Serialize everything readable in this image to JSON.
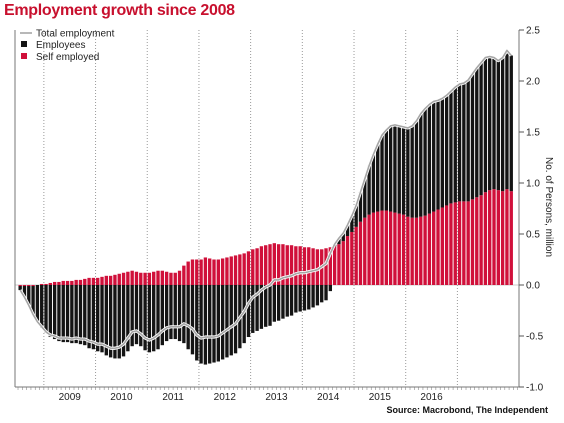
{
  "chart_data": {
    "type": "bar",
    "title": "Employment growth since 2008",
    "ylabel": "No. of Persons, million",
    "xlabel": "",
    "source": "Source: Macrobond, The Independent",
    "ylim": [
      -1.0,
      2.5
    ],
    "yticks": [
      "2.5",
      "2.0",
      "1.5",
      "1.0",
      "0.5",
      "0.0",
      "-0.5",
      "-1.0"
    ],
    "year_labels": [
      "2009",
      "2010",
      "2011",
      "2012",
      "2013",
      "2014",
      "2015",
      "2016"
    ],
    "x_start": 2008.5,
    "x_step_months": 1,
    "grid": "vertical dotted at year boundaries",
    "legend_position": "top-left",
    "colors": {
      "Total employment": "#a6a6a6",
      "Employees": "#141414",
      "Self employed": "#d0103a"
    },
    "series": [
      {
        "name": "Employees",
        "kind": "stacked-bar",
        "values": [
          -0.04,
          -0.11,
          -0.19,
          -0.28,
          -0.36,
          -0.42,
          -0.47,
          -0.51,
          -0.53,
          -0.55,
          -0.56,
          -0.56,
          -0.57,
          -0.57,
          -0.58,
          -0.59,
          -0.62,
          -0.63,
          -0.65,
          -0.66,
          -0.69,
          -0.71,
          -0.72,
          -0.72,
          -0.7,
          -0.65,
          -0.6,
          -0.58,
          -0.6,
          -0.64,
          -0.66,
          -0.65,
          -0.63,
          -0.59,
          -0.55,
          -0.53,
          -0.53,
          -0.55,
          -0.57,
          -0.63,
          -0.68,
          -0.74,
          -0.77,
          -0.78,
          -0.77,
          -0.76,
          -0.75,
          -0.73,
          -0.71,
          -0.69,
          -0.67,
          -0.62,
          -0.57,
          -0.51,
          -0.47,
          -0.45,
          -0.43,
          -0.41,
          -0.4,
          -0.36,
          -0.35,
          -0.33,
          -0.31,
          -0.3,
          -0.27,
          -0.26,
          -0.25,
          -0.24,
          -0.22,
          -0.2,
          -0.17,
          -0.15,
          -0.06,
          0.02,
          0.06,
          0.08,
          0.11,
          0.16,
          0.21,
          0.29,
          0.38,
          0.48,
          0.57,
          0.66,
          0.74,
          0.79,
          0.84,
          0.86,
          0.86,
          0.86,
          0.87,
          0.9,
          0.95,
          1.01,
          1.05,
          1.07,
          1.08,
          1.07,
          1.07,
          1.08,
          1.1,
          1.13,
          1.15,
          1.16,
          1.19,
          1.23,
          1.27,
          1.3,
          1.32,
          1.31,
          1.29,
          1.27,
          1.31,
          1.36,
          1.33
        ],
        "unit": "million"
      },
      {
        "name": "Self employed",
        "kind": "stacked-bar",
        "values": [
          -0.01,
          -0.01,
          -0.01,
          -0.01,
          0.0,
          0.01,
          0.01,
          0.02,
          0.03,
          0.03,
          0.04,
          0.04,
          0.04,
          0.05,
          0.05,
          0.06,
          0.07,
          0.07,
          0.07,
          0.08,
          0.09,
          0.09,
          0.1,
          0.11,
          0.12,
          0.13,
          0.14,
          0.13,
          0.12,
          0.12,
          0.12,
          0.13,
          0.14,
          0.14,
          0.13,
          0.12,
          0.12,
          0.14,
          0.19,
          0.23,
          0.25,
          0.25,
          0.25,
          0.27,
          0.26,
          0.25,
          0.25,
          0.26,
          0.27,
          0.28,
          0.29,
          0.3,
          0.31,
          0.33,
          0.35,
          0.36,
          0.38,
          0.39,
          0.4,
          0.41,
          0.4,
          0.4,
          0.39,
          0.39,
          0.38,
          0.38,
          0.37,
          0.37,
          0.36,
          0.35,
          0.35,
          0.36,
          0.37,
          0.38,
          0.4,
          0.43,
          0.48,
          0.52,
          0.57,
          0.62,
          0.66,
          0.69,
          0.71,
          0.72,
          0.73,
          0.73,
          0.72,
          0.71,
          0.7,
          0.69,
          0.67,
          0.66,
          0.66,
          0.67,
          0.68,
          0.7,
          0.72,
          0.74,
          0.76,
          0.78,
          0.8,
          0.81,
          0.82,
          0.82,
          0.82,
          0.84,
          0.86,
          0.88,
          0.91,
          0.93,
          0.94,
          0.93,
          0.92,
          0.94,
          0.92
        ],
        "unit": "million"
      },
      {
        "name": "Total employment",
        "kind": "line",
        "values": [
          -0.05,
          -0.12,
          -0.2,
          -0.29,
          -0.36,
          -0.41,
          -0.46,
          -0.49,
          -0.5,
          -0.52,
          -0.52,
          -0.52,
          -0.53,
          -0.52,
          -0.53,
          -0.53,
          -0.55,
          -0.56,
          -0.58,
          -0.58,
          -0.6,
          -0.62,
          -0.62,
          -0.61,
          -0.58,
          -0.52,
          -0.46,
          -0.45,
          -0.48,
          -0.52,
          -0.54,
          -0.52,
          -0.49,
          -0.45,
          -0.42,
          -0.41,
          -0.41,
          -0.41,
          -0.38,
          -0.4,
          -0.43,
          -0.49,
          -0.52,
          -0.51,
          -0.51,
          -0.51,
          -0.5,
          -0.47,
          -0.44,
          -0.41,
          -0.38,
          -0.32,
          -0.26,
          -0.18,
          -0.12,
          -0.09,
          -0.05,
          -0.02,
          0.0,
          0.05,
          0.05,
          0.07,
          0.08,
          0.09,
          0.11,
          0.12,
          0.12,
          0.13,
          0.14,
          0.15,
          0.18,
          0.21,
          0.31,
          0.4,
          0.46,
          0.51,
          0.59,
          0.68,
          0.78,
          0.91,
          1.04,
          1.17,
          1.28,
          1.38,
          1.47,
          1.52,
          1.56,
          1.57,
          1.56,
          1.55,
          1.54,
          1.56,
          1.61,
          1.68,
          1.73,
          1.77,
          1.8,
          1.81,
          1.83,
          1.86,
          1.9,
          1.94,
          1.97,
          1.98,
          2.01,
          2.07,
          2.13,
          2.18,
          2.23,
          2.24,
          2.23,
          2.2,
          2.23,
          2.3,
          2.25
        ],
        "unit": "million"
      }
    ]
  }
}
